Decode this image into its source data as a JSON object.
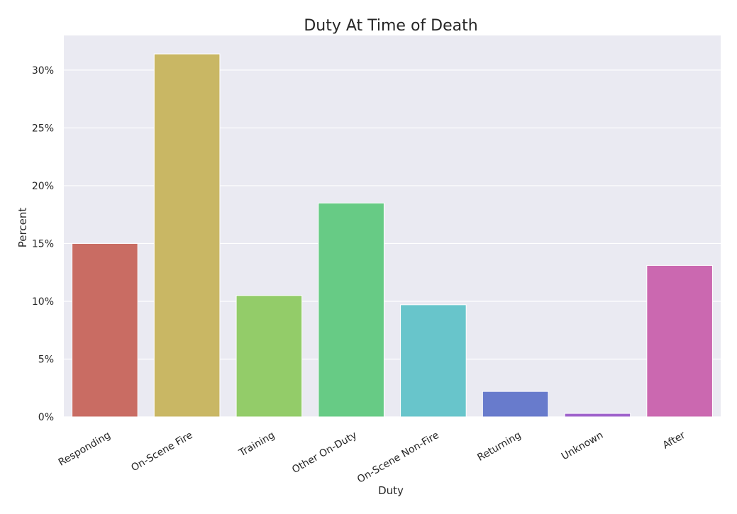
{
  "chart_data": {
    "type": "bar",
    "title": "Duty At Time of Death",
    "xlabel": "Duty",
    "ylabel": "Percent",
    "categories": [
      "Responding",
      "On-Scene Fire",
      "Training",
      "Other On-Duty",
      "On-Scene Non-Fire",
      "Returning",
      "Unknown",
      "After"
    ],
    "values": [
      15.0,
      31.4,
      10.5,
      18.5,
      9.7,
      2.2,
      0.3,
      13.1
    ],
    "colors": [
      "#c96c63",
      "#c9b764",
      "#93cc69",
      "#67cb85",
      "#68c5cb",
      "#687bcc",
      "#9f63cc",
      "#cb68b0"
    ],
    "ylim": [
      0,
      33
    ],
    "yticks": [
      0,
      5,
      10,
      15,
      20,
      25,
      30
    ],
    "ytick_labels": [
      "0%",
      "5%",
      "10%",
      "15%",
      "20%",
      "25%",
      "30%"
    ],
    "grid": true,
    "plot_background": "#eaeaf2",
    "grid_color": "#ffffff"
  }
}
